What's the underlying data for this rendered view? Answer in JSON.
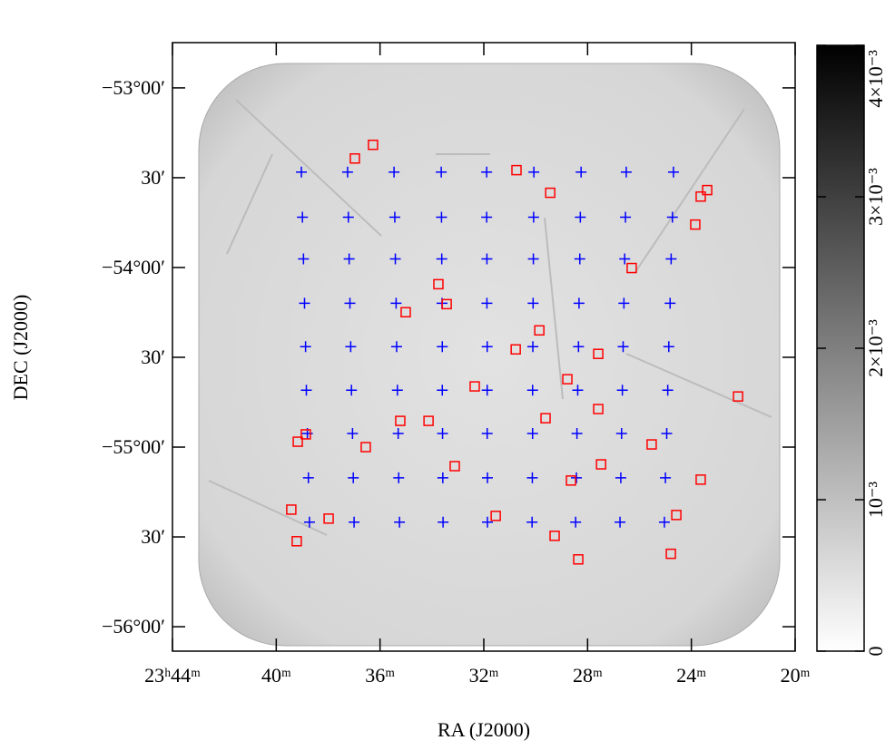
{
  "chart_data": {
    "type": "scatter",
    "xlabel": "RA (J2000)",
    "ylabel": "DEC (J2000)",
    "xlim": [
      44,
      20
    ],
    "ylim": [
      -56.136,
      -52.748
    ],
    "xticks": [
      {
        "value": 44,
        "label": "23ʰ44ᵐ"
      },
      {
        "value": 40,
        "label": "40ᵐ"
      },
      {
        "value": 36,
        "label": "36ᵐ"
      },
      {
        "value": 32,
        "label": "32ᵐ"
      },
      {
        "value": 28,
        "label": "28ᵐ"
      },
      {
        "value": 24,
        "label": "24ᵐ"
      },
      {
        "value": 20,
        "label": "20ᵐ"
      }
    ],
    "yticks": [
      {
        "value": -53,
        "label": "−53°00′"
      },
      {
        "value": -53.5,
        "label": "30′"
      },
      {
        "value": -54,
        "label": "−54°00′"
      },
      {
        "value": -54.5,
        "label": "30′"
      },
      {
        "value": -55,
        "label": "−55°00′"
      },
      {
        "value": -55.5,
        "label": "30′"
      },
      {
        "value": -56,
        "label": "−56°00′"
      }
    ],
    "series": [
      {
        "marker": "plus",
        "color": "#0000ff",
        "x": [
          39.03,
          37.25,
          35.46,
          33.64,
          31.89,
          30.07,
          28.25,
          26.51,
          24.69,
          38.99,
          37.22,
          35.43,
          33.63,
          31.89,
          30.08,
          28.28,
          26.54,
          24.73,
          38.95,
          37.19,
          35.41,
          33.62,
          31.88,
          30.09,
          28.3,
          26.57,
          24.78,
          38.91,
          37.16,
          35.38,
          33.61,
          31.88,
          30.1,
          28.33,
          26.6,
          24.82,
          38.87,
          37.13,
          35.36,
          33.6,
          31.87,
          30.11,
          28.35,
          26.63,
          24.87,
          38.84,
          37.1,
          35.33,
          33.6,
          31.87,
          30.12,
          28.38,
          26.66,
          24.91,
          38.8,
          37.06,
          35.3,
          33.59,
          31.87,
          30.12,
          28.41,
          26.69,
          24.95,
          38.76,
          37.03,
          35.28,
          33.58,
          31.86,
          30.13,
          28.43,
          26.72,
          25.0,
          38.72,
          37.0,
          35.25,
          33.57,
          31.86,
          30.14,
          28.46,
          26.75,
          25.04
        ],
        "y": [
          -53.469,
          -53.469,
          -53.469,
          -53.469,
          -53.469,
          -53.469,
          -53.469,
          -53.469,
          -53.469,
          -53.72,
          -53.72,
          -53.72,
          -53.72,
          -53.72,
          -53.72,
          -53.72,
          -53.72,
          -53.72,
          -53.952,
          -53.952,
          -53.952,
          -53.952,
          -53.952,
          -53.952,
          -53.952,
          -53.952,
          -53.952,
          -54.199,
          -54.199,
          -54.199,
          -54.199,
          -54.199,
          -54.199,
          -54.199,
          -54.199,
          -54.199,
          -54.441,
          -54.441,
          -54.441,
          -54.441,
          -54.441,
          -54.441,
          -54.441,
          -54.441,
          -54.441,
          -54.683,
          -54.683,
          -54.683,
          -54.683,
          -54.683,
          -54.683,
          -54.683,
          -54.683,
          -54.683,
          -54.924,
          -54.924,
          -54.924,
          -54.924,
          -54.924,
          -54.924,
          -54.924,
          -54.924,
          -54.924,
          -55.171,
          -55.171,
          -55.171,
          -55.171,
          -55.171,
          -55.171,
          -55.171,
          -55.171,
          -55.171,
          -55.418,
          -55.418,
          -55.418,
          -55.418,
          -55.418,
          -55.418,
          -55.418,
          -55.418,
          -55.418
        ]
      },
      {
        "marker": "square",
        "color": "#ff0000",
        "x": [
          36.27,
          36.97,
          30.74,
          29.44,
          23.39,
          23.64,
          23.85,
          26.3,
          33.75,
          33.43,
          35.01,
          29.86,
          30.77,
          27.59,
          32.35,
          28.78,
          22.2,
          27.59,
          29.62,
          35.22,
          34.13,
          38.86,
          39.17,
          36.55,
          25.53,
          33.12,
          27.48,
          28.64,
          23.64,
          39.42,
          37.98,
          31.54,
          24.58,
          39.21,
          29.27,
          28.36,
          24.79
        ],
        "y": [
          -53.317,
          -53.393,
          -53.458,
          -53.584,
          -53.569,
          -53.605,
          -53.761,
          -54.003,
          -54.093,
          -54.204,
          -54.249,
          -54.35,
          -54.456,
          -54.481,
          -54.662,
          -54.622,
          -54.718,
          -54.788,
          -54.839,
          -54.854,
          -54.854,
          -54.929,
          -54.97,
          -55.0,
          -54.985,
          -55.106,
          -55.096,
          -55.186,
          -55.181,
          -55.348,
          -55.398,
          -55.383,
          -55.378,
          -55.524,
          -55.494,
          -55.625,
          -55.594
        ]
      }
    ],
    "colorbar": {
      "clim": [
        0,
        0.004
      ],
      "colors": [
        "#ffffff",
        "#000000"
      ],
      "ticks": [
        0,
        {
          "value": 0.001,
          "label": "10⁻³"
        },
        {
          "value": 0.002,
          "label": "2×10⁻³"
        },
        {
          "value": 0.003,
          "label": "3×10⁻³"
        },
        {
          "value": 0.004,
          "label": "4×10⁻³"
        }
      ]
    }
  }
}
